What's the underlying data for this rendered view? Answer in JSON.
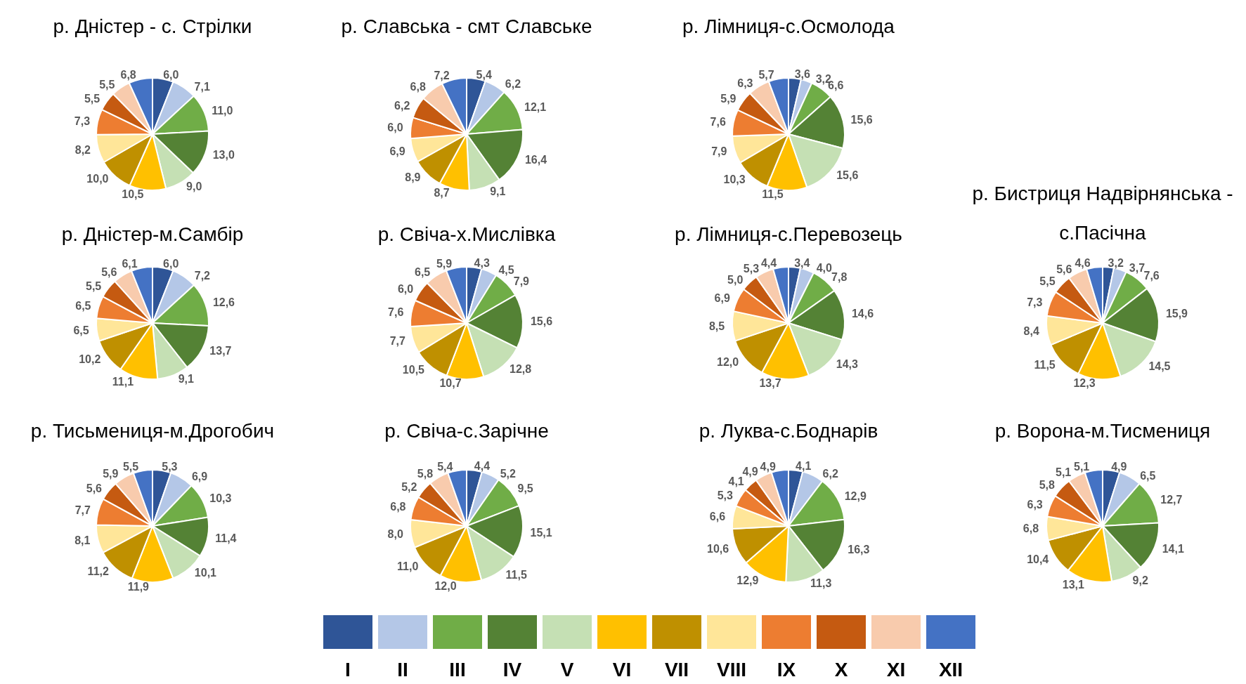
{
  "chart_data": [
    {
      "type": "pie",
      "title": "р. Дністер - с. Стрілки",
      "categories": [
        "I",
        "II",
        "III",
        "IV",
        "V",
        "VI",
        "VII",
        "VIII",
        "IX",
        "X",
        "XI",
        "XII"
      ],
      "colors": [
        "#2f5597",
        "#b4c7e7",
        "#70ad47",
        "#548235",
        "#c5e0b4",
        "#ffc000",
        "#bf9000",
        "#ffe699",
        "#ed7d31",
        "#c55a11",
        "#f8cbad",
        "#4472c4"
      ],
      "values": [
        6.0,
        7.1,
        11.0,
        13.0,
        9.0,
        10.5,
        10.0,
        8.2,
        7.3,
        5.5,
        5.5,
        6.8
      ],
      "value_labels": [
        "6,0",
        "7,1",
        "11,0",
        "13,0",
        "9,0",
        "10,5",
        "10,0",
        "8,2",
        "7,3",
        "5,5",
        "5,5",
        "6,8"
      ],
      "legend": "bottom"
    },
    {
      "type": "pie",
      "title": "р. Славська - смт Славське",
      "colors": [
        "#2f5597",
        "#b4c7e7",
        "#70ad47",
        "#548235",
        "#c5e0b4",
        "#ffc000",
        "#bf9000",
        "#ffe699",
        "#ed7d31",
        "#c55a11",
        "#f8cbad",
        "#4472c4"
      ],
      "values": [
        5.4,
        6.2,
        12.1,
        16.4,
        9.1,
        8.7,
        8.9,
        6.9,
        6.0,
        6.2,
        6.8,
        7.2
      ],
      "value_labels": [
        "5,4",
        "6,2",
        "12,1",
        "16,4",
        "9,1",
        "8,7",
        "8,9",
        "6,9",
        "6,0",
        "6,2",
        "6,8",
        "7,2"
      ]
    },
    {
      "type": "pie",
      "title": "р. Лімниця-с.Осмолода",
      "colors": [
        "#2f5597",
        "#b4c7e7",
        "#70ad47",
        "#548235",
        "#c5e0b4",
        "#ffc000",
        "#bf9000",
        "#ffe699",
        "#ed7d31",
        "#c55a11",
        "#f8cbad",
        "#4472c4"
      ],
      "values": [
        3.6,
        3.2,
        6.6,
        15.6,
        15.6,
        11.5,
        10.3,
        7.9,
        7.6,
        5.9,
        6.3,
        5.7
      ],
      "value_labels": [
        "3,6",
        "3,2",
        "6,6",
        "15,6",
        "15,6",
        "11,5",
        "10,3",
        "7,9",
        "7,6",
        "5,9",
        "6,3",
        "5,7"
      ]
    },
    {
      "type": "pie",
      "title": "р. Дністер-м.Самбір",
      "colors": [
        "#2f5597",
        "#b4c7e7",
        "#70ad47",
        "#548235",
        "#c5e0b4",
        "#ffc000",
        "#bf9000",
        "#ffe699",
        "#ed7d31",
        "#c55a11",
        "#f8cbad",
        "#4472c4"
      ],
      "values": [
        6.0,
        7.2,
        12.6,
        13.7,
        9.1,
        11.1,
        10.2,
        6.5,
        6.5,
        5.5,
        5.6,
        6.1
      ],
      "value_labels": [
        "6,0",
        "7,2",
        "12,6",
        "13,7",
        "9,1",
        "11,1",
        "10,2",
        "6,5",
        "6,5",
        "5,5",
        "5,6",
        "6,1"
      ]
    },
    {
      "type": "pie",
      "title": "р. Свіча-х.Мислівка",
      "colors": [
        "#2f5597",
        "#b4c7e7",
        "#70ad47",
        "#548235",
        "#c5e0b4",
        "#ffc000",
        "#bf9000",
        "#ffe699",
        "#ed7d31",
        "#c55a11",
        "#f8cbad",
        "#4472c4"
      ],
      "values": [
        4.3,
        4.5,
        7.9,
        15.6,
        12.8,
        10.7,
        10.5,
        7.7,
        7.6,
        6.0,
        6.5,
        5.9
      ],
      "value_labels": [
        "4,3",
        "4,5",
        "7,9",
        "15,6",
        "12,8",
        "10,7",
        "10,5",
        "7,7",
        "7,6",
        "6,0",
        "6,5",
        "5,9"
      ]
    },
    {
      "type": "pie",
      "title": "р. Лімниця-с.Перевозець",
      "colors": [
        "#2f5597",
        "#b4c7e7",
        "#70ad47",
        "#548235",
        "#c5e0b4",
        "#ffc000",
        "#bf9000",
        "#ffe699",
        "#ed7d31",
        "#c55a11",
        "#f8cbad",
        "#4472c4"
      ],
      "values": [
        3.4,
        4.0,
        7.8,
        14.6,
        14.3,
        13.7,
        12.0,
        8.5,
        6.9,
        5.0,
        5.3,
        4.4
      ],
      "value_labels": [
        "3,4",
        "4,0",
        "7,8",
        "14,6",
        "14,3",
        "13,7",
        "12,0",
        "8,5",
        "6,9",
        "5,0",
        "5,3",
        "4,4"
      ]
    },
    {
      "type": "pie",
      "title": "р. Бистриця Надвірнянська - с.Пасічна",
      "colors": [
        "#2f5597",
        "#b4c7e7",
        "#70ad47",
        "#548235",
        "#c5e0b4",
        "#ffc000",
        "#bf9000",
        "#ffe699",
        "#ed7d31",
        "#c55a11",
        "#f8cbad",
        "#4472c4"
      ],
      "values": [
        3.2,
        3.7,
        7.6,
        15.9,
        14.5,
        12.3,
        11.5,
        8.4,
        7.3,
        5.5,
        5.6,
        4.6
      ],
      "value_labels": [
        "3,2",
        "3,7",
        "7,6",
        "15,9",
        "14,5",
        "12,3",
        "11,5",
        "8,4",
        "7,3",
        "5,5",
        "5,6",
        "4,6"
      ]
    },
    {
      "type": "pie",
      "title": "р. Тисьмениця-м.Дрогобич",
      "colors": [
        "#2f5597",
        "#b4c7e7",
        "#70ad47",
        "#548235",
        "#c5e0b4",
        "#ffc000",
        "#bf9000",
        "#ffe699",
        "#ed7d31",
        "#c55a11",
        "#f8cbad",
        "#4472c4"
      ],
      "values": [
        5.3,
        6.9,
        10.3,
        11.4,
        10.1,
        11.9,
        11.2,
        8.1,
        7.7,
        5.6,
        5.9,
        5.5
      ],
      "value_labels": [
        "5,3",
        "6,9",
        "10,3",
        "11,4",
        "10,1",
        "11,9",
        "11,2",
        "8,1",
        "7,7",
        "5,6",
        "5,9",
        "5,5"
      ]
    },
    {
      "type": "pie",
      "title": "р. Свіча-с.Зарічне",
      "colors": [
        "#2f5597",
        "#b4c7e7",
        "#70ad47",
        "#548235",
        "#c5e0b4",
        "#ffc000",
        "#bf9000",
        "#ffe699",
        "#ed7d31",
        "#c55a11",
        "#f8cbad",
        "#4472c4"
      ],
      "values": [
        4.4,
        5.2,
        9.5,
        15.1,
        11.5,
        12.0,
        11.0,
        8.0,
        6.8,
        5.2,
        5.8,
        5.4
      ],
      "value_labels": [
        "4,4",
        "5,2",
        "9,5",
        "15,1",
        "11,5",
        "12,0",
        "11,0",
        "8,0",
        "6,8",
        "5,2",
        "5,8",
        "5,4"
      ]
    },
    {
      "type": "pie",
      "title": "р. Луква-с.Боднарів",
      "colors": [
        "#2f5597",
        "#b4c7e7",
        "#70ad47",
        "#548235",
        "#c5e0b4",
        "#ffc000",
        "#bf9000",
        "#ffe699",
        "#ed7d31",
        "#c55a11",
        "#f8cbad",
        "#4472c4"
      ],
      "values": [
        4.1,
        6.2,
        12.9,
        16.3,
        11.3,
        12.9,
        10.6,
        6.6,
        5.3,
        4.1,
        4.9,
        4.9
      ],
      "value_labels": [
        "4,1",
        "6,2",
        "12,9",
        "16,3",
        "11,3",
        "12,9",
        "10,6",
        "6,6",
        "5,3",
        "4,1",
        "4,9",
        "4,9"
      ]
    },
    {
      "type": "pie",
      "title": "р. Ворона-м.Тисмениця",
      "colors": [
        "#2f5597",
        "#b4c7e7",
        "#70ad47",
        "#548235",
        "#c5e0b4",
        "#ffc000",
        "#bf9000",
        "#ffe699",
        "#ed7d31",
        "#c55a11",
        "#f8cbad",
        "#4472c4"
      ],
      "values": [
        4.9,
        6.5,
        12.7,
        14.1,
        9.2,
        13.1,
        10.4,
        6.8,
        6.3,
        5.8,
        5.1,
        5.1
      ],
      "value_labels": [
        "4,9",
        "6,5",
        "12,7",
        "14,1",
        "9,2",
        "13,1",
        "10,4",
        "6,8",
        "6,3",
        "5,8",
        "5,1",
        "5,1"
      ]
    }
  ]
}
